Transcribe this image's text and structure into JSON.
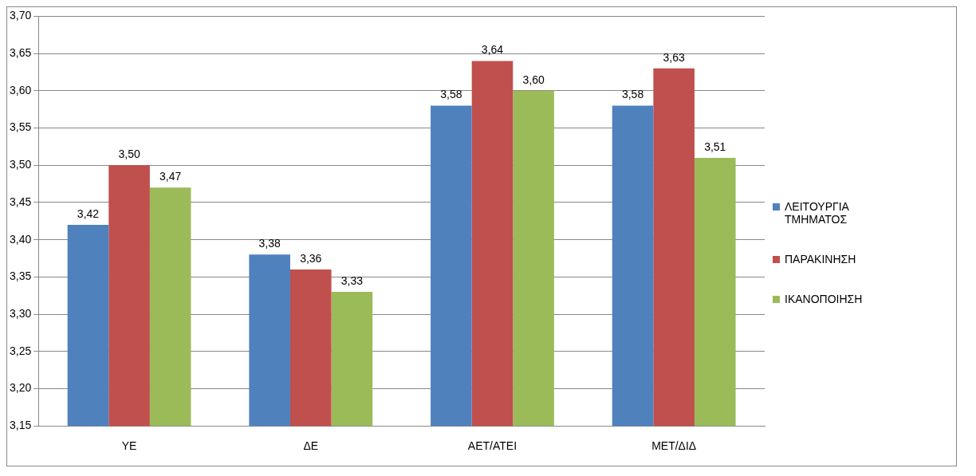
{
  "chart_data": {
    "type": "bar",
    "categories": [
      "ΥΕ",
      "ΔΕ",
      "ΑΕΤ/ΑΤΕΙ",
      "ΜΕΤ/ΔΙΔ"
    ],
    "series": [
      {
        "name": "ΛΕΙΤΟΥΡΓΙΑ ΤΜΗΜΑΤΟΣ",
        "color": "#4f81bd",
        "values": [
          3.42,
          3.38,
          3.58,
          3.58
        ],
        "value_labels": [
          "3,42",
          "3,38",
          "3,58",
          "3,58"
        ]
      },
      {
        "name": "ΠΑΡΑΚΙΝΗΣΗ",
        "color": "#c0504d",
        "values": [
          3.5,
          3.36,
          3.64,
          3.63
        ],
        "value_labels": [
          "3,50",
          "3,36",
          "3,64",
          "3,63"
        ]
      },
      {
        "name": "ΙΚΑΝΟΠΟΙΗΣΗ",
        "color": "#9bbb59",
        "values": [
          3.47,
          3.33,
          3.6,
          3.51
        ],
        "value_labels": [
          "3,47",
          "3,33",
          "3,60",
          "3,51"
        ]
      }
    ],
    "ylim": [
      3.15,
      3.7
    ],
    "yticks": [
      {
        "value": 3.15,
        "label": "3,15"
      },
      {
        "value": 3.2,
        "label": "3,20"
      },
      {
        "value": 3.25,
        "label": "3,25"
      },
      {
        "value": 3.3,
        "label": "3,30"
      },
      {
        "value": 3.35,
        "label": "3,35"
      },
      {
        "value": 3.4,
        "label": "3,40"
      },
      {
        "value": 3.45,
        "label": "3,45"
      },
      {
        "value": 3.5,
        "label": "3,50"
      },
      {
        "value": 3.55,
        "label": "3,55"
      },
      {
        "value": 3.6,
        "label": "3,60"
      },
      {
        "value": 3.65,
        "label": "3,65"
      },
      {
        "value": 3.7,
        "label": "3,70"
      }
    ],
    "grid": "y",
    "legend": "right"
  }
}
